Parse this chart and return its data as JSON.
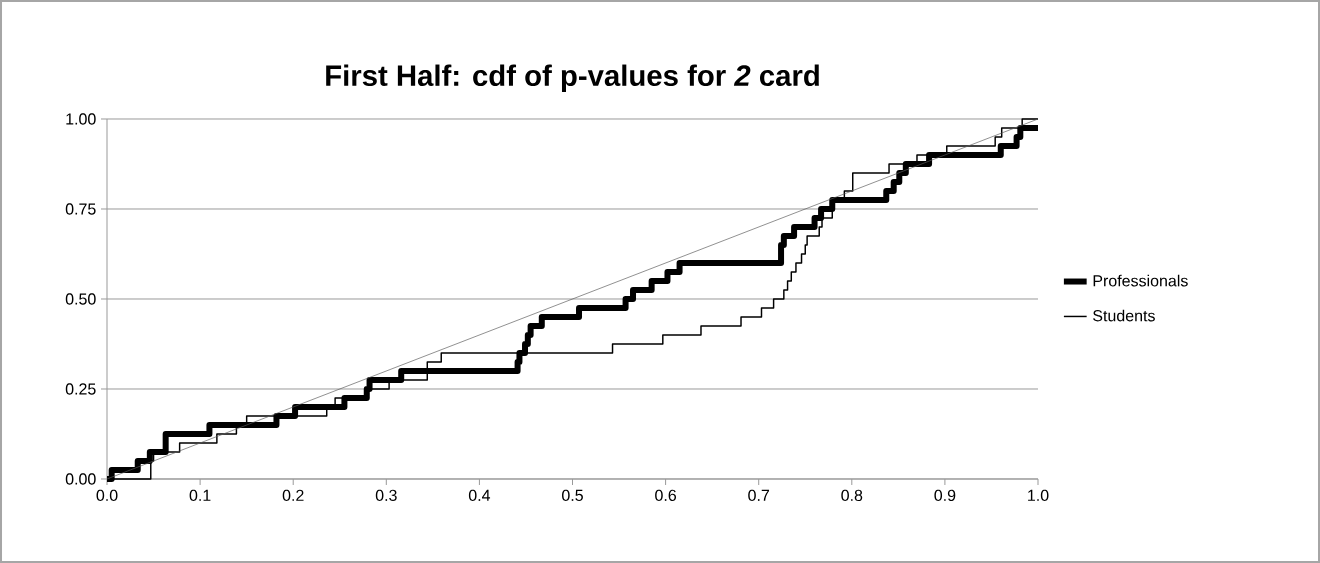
{
  "chart_data": {
    "type": "step",
    "title": "First Half: cdf of p-values for *2* card",
    "xlim": [
      0,
      1
    ],
    "ylim": [
      0,
      1
    ],
    "xticks": [
      {
        "value": 0,
        "label": "0.0"
      },
      {
        "value": 0.1,
        "label": "0.1"
      },
      {
        "value": 0.2,
        "label": "0.2"
      },
      {
        "value": 0.3,
        "label": "0.3"
      },
      {
        "value": 0.4,
        "label": "0.4"
      },
      {
        "value": 0.5,
        "label": "0.5"
      },
      {
        "value": 0.6,
        "label": "0.6"
      },
      {
        "value": 0.7,
        "label": "0.7"
      },
      {
        "value": 0.8,
        "label": "0.8"
      },
      {
        "value": 0.9,
        "label": "0.9"
      },
      {
        "value": 1,
        "label": "1.0"
      }
    ],
    "yticks": [
      {
        "value": 0,
        "label": "0.00"
      },
      {
        "value": 0.25,
        "label": "0.25"
      },
      {
        "value": 0.5,
        "label": "0.50"
      },
      {
        "value": 0.75,
        "label": "0.75"
      },
      {
        "value": 1,
        "label": "1.00"
      }
    ],
    "grid": "y",
    "legend": "right",
    "series": [
      {
        "name": "Professionals",
        "color": "#000000",
        "x": [
          0,
          0.005,
          0.033,
          0.046,
          0.063,
          0.11,
          0.182,
          0.202,
          0.255,
          0.279,
          0.282,
          0.316,
          0.441,
          0.443,
          0.449,
          0.452,
          0.455,
          0.467,
          0.507,
          0.557,
          0.565,
          0.585,
          0.602,
          0.615,
          0.724,
          0.727,
          0.738,
          0.76,
          0.767,
          0.779,
          0.837,
          0.845,
          0.851,
          0.858,
          0.883,
          0.96,
          0.977,
          0.981,
          1
        ],
        "values": [
          0,
          0.025,
          0.05,
          0.075,
          0.125,
          0.15,
          0.175,
          0.2,
          0.225,
          0.25,
          0.275,
          0.3,
          0.325,
          0.35,
          0.375,
          0.4,
          0.425,
          0.45,
          0.475,
          0.5,
          0.525,
          0.55,
          0.575,
          0.6,
          0.65,
          0.675,
          0.7,
          0.725,
          0.75,
          0.775,
          0.8,
          0.825,
          0.85,
          0.875,
          0.9,
          0.925,
          0.95,
          0.975,
          0.975
        ]
      },
      {
        "name": "Students",
        "color": "#000000",
        "x": [
          0,
          0.047,
          0.05,
          0.078,
          0.118,
          0.139,
          0.15,
          0.236,
          0.245,
          0.279,
          0.303,
          0.344,
          0.359,
          0.543,
          0.597,
          0.638,
          0.681,
          0.703,
          0.716,
          0.727,
          0.731,
          0.735,
          0.74,
          0.746,
          0.75,
          0.752,
          0.765,
          0.768,
          0.779,
          0.792,
          0.801,
          0.84,
          0.87,
          0.902,
          0.954,
          0.961,
          0.983,
          1
        ],
        "values": [
          0,
          0.05,
          0.075,
          0.1,
          0.125,
          0.15,
          0.175,
          0.2,
          0.225,
          0.25,
          0.275,
          0.325,
          0.35,
          0.375,
          0.4,
          0.425,
          0.45,
          0.475,
          0.5,
          0.525,
          0.55,
          0.575,
          0.6,
          0.625,
          0.65,
          0.675,
          0.7,
          0.725,
          0.775,
          0.8,
          0.85,
          0.875,
          0.9,
          0.925,
          0.95,
          0.975,
          1,
          1
        ]
      },
      {
        "type": "line",
        "color": "#595959",
        "x": [
          0,
          1
        ],
        "values": [
          0,
          1
        ]
      }
    ]
  }
}
